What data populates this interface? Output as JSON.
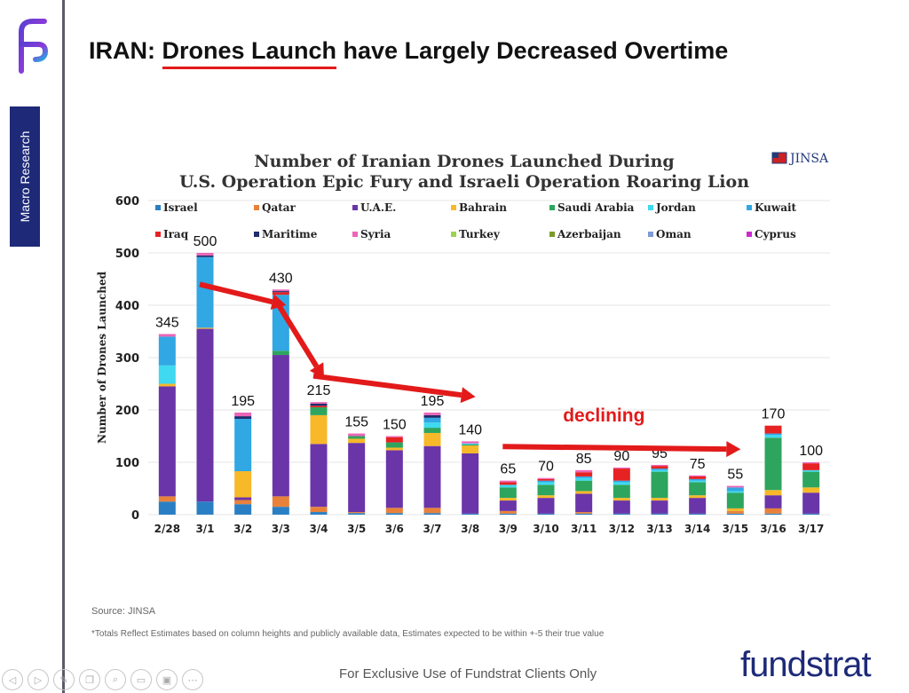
{
  "sidebar": {
    "tab_label": "Macro Research",
    "logo_icon": "fundstrat-f-logo-icon"
  },
  "header": {
    "title_prefix": "IRAN: ",
    "title_highlight": "Drones Launch",
    "title_suffix": " have Largely Decreased Overtime"
  },
  "colors": {
    "israel": "#2a7fc4",
    "qatar": "#e8823a",
    "uae": "#6a35a8",
    "bahrain": "#f7b82a",
    "saudi_arabia": "#2ea55e",
    "jordan": "#3fd9f0",
    "kuwait": "#31a7e3",
    "iraq": "#e62222",
    "maritime": "#1f2d6b",
    "syria": "#ec65b8",
    "turkey": "#9bd34d",
    "azerbaijan": "#7b9b2a",
    "oman": "#7d9bd8",
    "cyprus": "#c92bd0",
    "annotation": "#e31a1a",
    "brand": "#1e2a78"
  },
  "chart_data": {
    "type": "bar",
    "stacked": true,
    "title": "Number of Iranian Drones Launched During",
    "subtitle": "U.S. Operation Epic Fury and Israeli Operation Roaring Lion",
    "logo_text": "JINSA",
    "ylabel": "Number of Drones Launched",
    "xlabel": "",
    "ylim": [
      0,
      600
    ],
    "yticks": [
      0,
      100,
      200,
      300,
      400,
      500,
      600
    ],
    "grid": true,
    "legend_position": "top",
    "categories": [
      "2/28",
      "3/1",
      "3/2",
      "3/3",
      "3/4",
      "3/5",
      "3/6",
      "3/7",
      "3/8",
      "3/9",
      "3/10",
      "3/11",
      "3/12",
      "3/13",
      "3/14",
      "3/15",
      "3/16",
      "3/17"
    ],
    "totals": [
      345,
      500,
      195,
      430,
      215,
      155,
      150,
      195,
      140,
      65,
      70,
      85,
      90,
      95,
      75,
      55,
      170,
      100
    ],
    "series": [
      {
        "name": "Israel",
        "color_key": "israel",
        "values": [
          25,
          25,
          20,
          15,
          5,
          3,
          3,
          3,
          2,
          2,
          2,
          2,
          2,
          2,
          2,
          2,
          2,
          2
        ]
      },
      {
        "name": "Qatar",
        "color_key": "qatar",
        "values": [
          10,
          0,
          8,
          20,
          10,
          2,
          10,
          10,
          0,
          5,
          0,
          3,
          0,
          0,
          0,
          5,
          10,
          0
        ]
      },
      {
        "name": "U.A.E.",
        "color_key": "uae",
        "values": [
          210,
          330,
          5,
          270,
          120,
          132,
          110,
          118,
          115,
          20,
          30,
          35,
          25,
          25,
          30,
          0,
          25,
          40
        ]
      },
      {
        "name": "Bahrain",
        "color_key": "bahrain",
        "values": [
          5,
          2,
          50,
          0,
          55,
          8,
          5,
          25,
          15,
          5,
          5,
          5,
          5,
          5,
          5,
          5,
          10,
          10
        ]
      },
      {
        "name": "Saudi Arabia",
        "color_key": "saudi_arabia",
        "values": [
          0,
          0,
          0,
          8,
          15,
          5,
          10,
          10,
          2,
          20,
          20,
          20,
          25,
          50,
          25,
          30,
          100,
          30
        ]
      },
      {
        "name": "Jordan",
        "color_key": "jordan",
        "values": [
          35,
          0,
          0,
          0,
          0,
          0,
          0,
          10,
          2,
          5,
          5,
          5,
          5,
          3,
          3,
          3,
          5,
          3
        ]
      },
      {
        "name": "Kuwait",
        "color_key": "kuwait",
        "values": [
          55,
          135,
          100,
          107,
          0,
          0,
          0,
          9,
          0,
          0,
          3,
          3,
          3,
          3,
          3,
          7,
          3,
          0
        ]
      },
      {
        "name": "Iraq",
        "color_key": "iraq",
        "values": [
          0,
          0,
          0,
          5,
          3,
          0,
          10,
          0,
          0,
          5,
          3,
          8,
          23,
          5,
          5,
          0,
          15,
          13
        ]
      },
      {
        "name": "Maritime",
        "color_key": "maritime",
        "values": [
          0,
          3,
          5,
          2,
          4,
          0,
          0,
          5,
          0,
          0,
          0,
          0,
          0,
          0,
          0,
          0,
          0,
          0
        ]
      },
      {
        "name": "Syria",
        "color_key": "syria",
        "values": [
          5,
          5,
          7,
          3,
          3,
          5,
          2,
          5,
          4,
          3,
          2,
          4,
          2,
          2,
          2,
          3,
          0,
          2
        ]
      },
      {
        "name": "Turkey",
        "color_key": "turkey",
        "values": [
          0,
          0,
          0,
          0,
          0,
          0,
          0,
          0,
          0,
          0,
          0,
          0,
          0,
          0,
          0,
          0,
          0,
          0
        ]
      },
      {
        "name": "Azerbaijan",
        "color_key": "azerbaijan",
        "values": [
          0,
          0,
          0,
          0,
          0,
          0,
          0,
          0,
          0,
          0,
          0,
          0,
          0,
          0,
          0,
          0,
          0,
          0
        ]
      },
      {
        "name": "Oman",
        "color_key": "oman",
        "values": [
          0,
          0,
          0,
          0,
          0,
          0,
          0,
          0,
          0,
          0,
          0,
          0,
          0,
          0,
          0,
          0,
          0,
          0
        ]
      },
      {
        "name": "Cyprus",
        "color_key": "cyprus",
        "values": [
          0,
          0,
          0,
          0,
          0,
          0,
          0,
          0,
          0,
          0,
          0,
          0,
          0,
          0,
          0,
          0,
          0,
          0
        ]
      }
    ],
    "annotations": [
      {
        "text": "declining",
        "color_key": "annotation"
      }
    ],
    "trend_arrows": [
      {
        "from_category": "3/1",
        "from_value": 440,
        "to_category": "3/3",
        "to_value": 400
      },
      {
        "from_category": "3/3",
        "from_value": 410,
        "to_category": "3/4",
        "to_value": 260
      },
      {
        "from_category": "3/4",
        "from_value": 265,
        "to_category": "3/8",
        "to_value": 225
      },
      {
        "from_category": "3/9",
        "from_value": 130,
        "to_category": "3/15",
        "to_value": 125
      }
    ]
  },
  "footer": {
    "source": "Source: JINSA",
    "footnote": "*Totals Reflect Estimates based on column heights and publicly available data, Estimates expected to be within +-5 their true value",
    "exclusive": "For Exclusive Use of Fundstrat Clients Only",
    "brand": "fundstrat"
  },
  "player_controls": [
    {
      "icon": "previous-icon",
      "glyph": "◁"
    },
    {
      "icon": "next-icon",
      "glyph": "▷"
    },
    {
      "icon": "pen-icon",
      "glyph": "✎"
    },
    {
      "icon": "slides-icon",
      "glyph": "❐"
    },
    {
      "icon": "zoom-icon",
      "glyph": "⌕"
    },
    {
      "icon": "subtitles-icon",
      "glyph": "▭"
    },
    {
      "icon": "camera-icon",
      "glyph": "▣"
    },
    {
      "icon": "more-icon",
      "glyph": "⋯"
    }
  ]
}
